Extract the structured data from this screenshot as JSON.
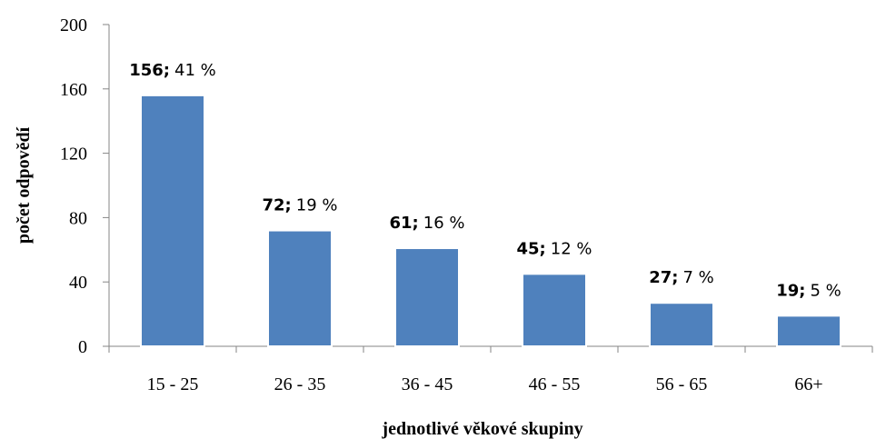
{
  "chart_data": {
    "type": "bar",
    "title": "",
    "xlabel": "jednotlivé věkové skupiny",
    "ylabel": "počet odpovědí",
    "categories": [
      "15 - 25",
      "26 - 35",
      "36 - 45",
      "46 - 55",
      "56 - 65",
      "66+"
    ],
    "values": [
      156,
      72,
      61,
      45,
      27,
      19
    ],
    "value_labels": [
      "156;",
      "72;",
      "61;",
      "45;",
      "27;",
      "19;"
    ],
    "percent_labels": [
      "41 %",
      "19 %",
      "16 %",
      "12 %",
      "7 %",
      "5 %"
    ],
    "ylim": [
      0,
      200
    ],
    "yticks": [
      "0",
      "40",
      "80",
      "120",
      "160",
      "200"
    ],
    "ytick_values": [
      0,
      40,
      80,
      120,
      160,
      200
    ],
    "grid": false,
    "legend": "none",
    "bar_color": "#4f81bd"
  }
}
